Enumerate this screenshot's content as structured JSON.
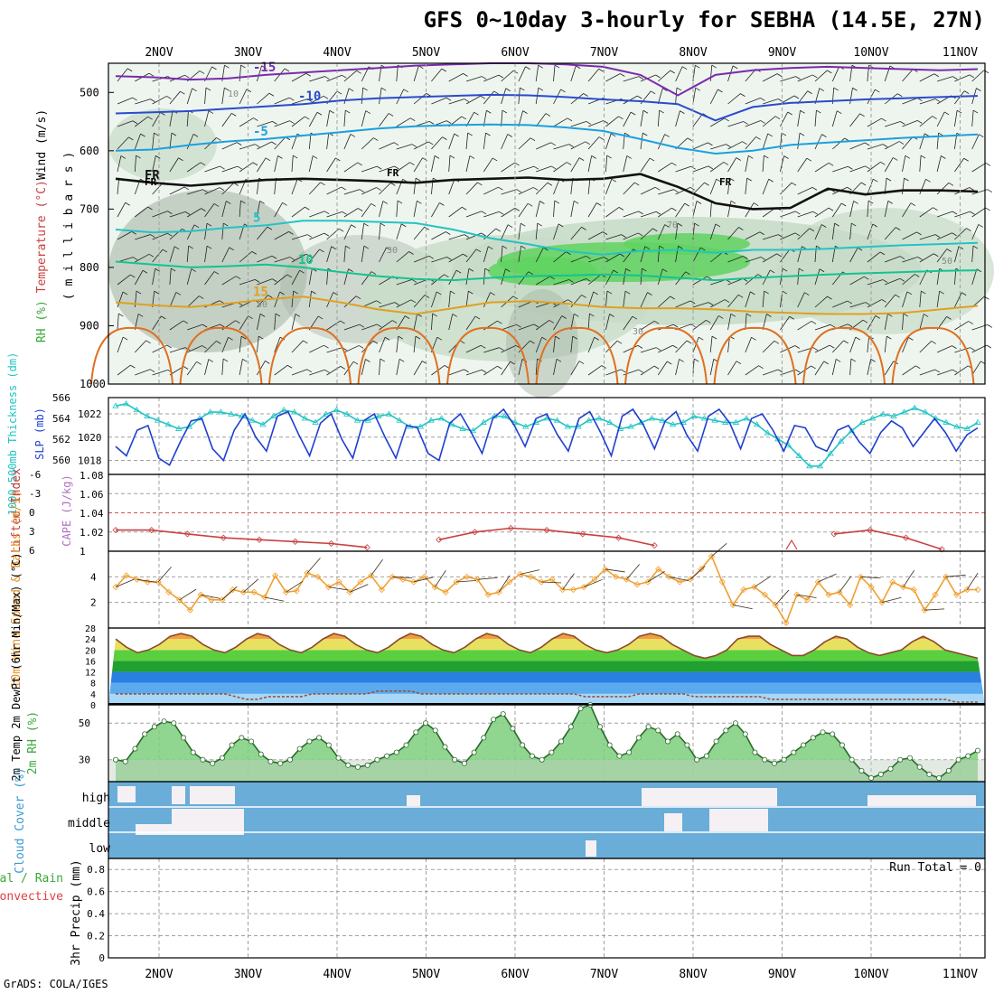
{
  "header": {
    "title": "GFS 0~10day 3-hourly for SEBHA (14.5E, 27N)",
    "footer": "GrADS: COLA/IGES",
    "run_total": "Run Total = 0"
  },
  "colors": {
    "rh_fill": "#c8dcc8",
    "rh_dark": "#a8b8a8",
    "rh_green": "#5fd35f",
    "slp": "#1f3fd0",
    "thickness": "#22c4c4",
    "cape": "#c94040",
    "wind_speed": "#f0a030",
    "barb": "#3a2a1a",
    "cloud": "#6aadd8",
    "cloud_clear": "#f4f0f4",
    "rh2m": "#7ccf7c",
    "grid": "#a0a0a0"
  },
  "chart_data": [
    {
      "panel": "upper_air",
      "type": "contour",
      "ylabel_parts": [
        "Wind (m/s)",
        "Temperature (°C)",
        "RH (%)",
        "( m i l l i b a r s )"
      ],
      "x_tick_labels": [
        "2NOV",
        "3NOV",
        "4NOV",
        "5NOV",
        "6NOV",
        "7NOV",
        "8NOV",
        "9NOV",
        "10NOV",
        "11NOV"
      ],
      "x_range_days": [
        0,
        9.8
      ],
      "y_ticks": [
        500,
        600,
        700,
        800,
        900,
        1000
      ],
      "ylim": [
        1000,
        450
      ],
      "temperature_contours": [
        {
          "label": "-15",
          "color": "#7a2ab0",
          "values": [
            472,
            474,
            478,
            476,
            470,
            466,
            462,
            458,
            454,
            452,
            450,
            450,
            452,
            456,
            470,
            505,
            470,
            462,
            458,
            456,
            458,
            460,
            462,
            460
          ]
        },
        {
          "label": "-10",
          "color": "#2a4ad0",
          "values": [
            536,
            534,
            532,
            528,
            524,
            520,
            514,
            510,
            508,
            506,
            504,
            505,
            508,
            512,
            515,
            520,
            548,
            525,
            518,
            515,
            512,
            510,
            508,
            506
          ]
        },
        {
          "label": "-5",
          "color": "#1aa0e0",
          "values": [
            600,
            598,
            590,
            584,
            580,
            574,
            568,
            562,
            558,
            556,
            555,
            556,
            560,
            566,
            580,
            595,
            605,
            600,
            590,
            586,
            582,
            578,
            575,
            572
          ]
        },
        {
          "label": "FR",
          "color": "#111111",
          "values": [
            648,
            655,
            660,
            655,
            650,
            648,
            650,
            652,
            655,
            650,
            648,
            646,
            650,
            648,
            640,
            662,
            690,
            700,
            698,
            665,
            675,
            668,
            668,
            670
          ]
        },
        {
          "label": "5",
          "color": "#22c4c4",
          "values": [
            735,
            740,
            738,
            732,
            728,
            720,
            720,
            722,
            724,
            735,
            750,
            760,
            772,
            778,
            772,
            770,
            775,
            770,
            770,
            768,
            765,
            762,
            760,
            758
          ]
        },
        {
          "label": "10",
          "color": "#12c490",
          "values": [
            790,
            795,
            800,
            798,
            795,
            800,
            808,
            815,
            820,
            822,
            818,
            815,
            814,
            812,
            814,
            818,
            822,
            818,
            815,
            812,
            810,
            808,
            806,
            805
          ]
        },
        {
          "label": "15",
          "color": "#e0a020",
          "values": [
            860,
            865,
            868,
            862,
            855,
            850,
            860,
            872,
            880,
            870,
            860,
            858,
            862,
            868,
            870,
            870,
            872,
            876,
            878,
            880,
            880,
            878,
            872,
            866
          ]
        }
      ],
      "freezing_labels": [
        "FR",
        "FR",
        "FR"
      ],
      "rh_labels": [
        "10",
        "30",
        "50",
        "70",
        "30",
        "50"
      ]
    },
    {
      "panel": "slp_thickness",
      "type": "line",
      "ylabel_left": "1000-500mb Thickness (dm)",
      "ylabel_right": "SLP (mb)",
      "left_ticks": [
        "560",
        "562",
        "564",
        "566"
      ],
      "right_ticks": [
        "1018",
        "1020",
        "1022"
      ],
      "series": [
        {
          "name": "SLP (mb)",
          "color": "#1f3fd0",
          "values": [
            1019.2,
            1018.4,
            1020.6,
            1021.0,
            1018.2,
            1017.6,
            1019.6,
            1021.4,
            1021.6,
            1019.0,
            1018.0,
            1020.6,
            1022.0,
            1020.0,
            1018.8,
            1021.8,
            1022.2,
            1020.2,
            1018.4,
            1021.2,
            1022.0,
            1019.8,
            1018.2,
            1021.4,
            1022.0,
            1020.0,
            1018.2,
            1021.0,
            1020.8,
            1018.6,
            1018.0,
            1021.2,
            1022.0,
            1020.4,
            1018.6,
            1021.6,
            1022.4,
            1021.0,
            1019.2,
            1021.6,
            1022.0,
            1020.2,
            1018.8,
            1021.6,
            1022.2,
            1020.4,
            1018.4,
            1021.8,
            1022.4,
            1021.0,
            1019.0,
            1021.4,
            1022.2,
            1020.2,
            1018.8,
            1021.8,
            1022.4,
            1021.2,
            1019.0,
            1021.6,
            1022.0,
            1020.6,
            1018.8,
            1021.0,
            1020.8,
            1019.2,
            1018.8,
            1020.6,
            1021.0,
            1019.6,
            1018.6,
            1020.4,
            1021.4,
            1020.8,
            1019.2,
            1020.4,
            1021.6,
            1020.4,
            1018.8,
            1020.2,
            1020.8
          ]
        },
        {
          "name": "1000-500mb Thickness (dm)",
          "color": "#22c4c4",
          "values": [
            565.2,
            565.4,
            564.8,
            564.2,
            563.8,
            563.4,
            563.0,
            563.2,
            564.0,
            564.6,
            564.6,
            564.4,
            564.2,
            563.8,
            563.4,
            564.2,
            564.8,
            564.6,
            564.0,
            563.6,
            564.4,
            564.8,
            564.4,
            563.8,
            563.8,
            564.2,
            564.4,
            563.8,
            563.2,
            563.2,
            563.8,
            564.0,
            563.4,
            563.0,
            562.8,
            563.6,
            564.2,
            564.2,
            563.6,
            563.2,
            563.6,
            564.0,
            563.8,
            563.2,
            563.2,
            563.8,
            564.0,
            563.6,
            563.0,
            563.2,
            563.6,
            564.0,
            563.8,
            563.4,
            563.6,
            564.2,
            564.0,
            563.8,
            563.6,
            563.6,
            564.0,
            563.4,
            562.6,
            562.0,
            561.4,
            560.4,
            559.4,
            559.4,
            560.6,
            561.8,
            562.8,
            563.6,
            564.0,
            564.4,
            564.2,
            564.6,
            565.0,
            564.6,
            564.0,
            563.6,
            563.2,
            563.0,
            563.6
          ]
        }
      ]
    },
    {
      "panel": "li_cape",
      "type": "line",
      "ylabel_left": "Lifted Index",
      "ylabel_right": "CAPE (J/kg)",
      "left_ticks": [
        "-6",
        "-3",
        "0",
        "3",
        "6"
      ],
      "right_ticks": [
        "1",
        "1.02",
        "1.04",
        "1.06",
        "1.08"
      ],
      "series": [
        {
          "name": "CAPE (J/kg)",
          "color": "#c94040",
          "values": [
            1.022,
            1.022,
            1.018,
            1.014,
            1.012,
            1.01,
            1.008,
            1.004,
            null,
            1.012,
            1.02,
            1.024,
            1.022,
            1.018,
            1.014,
            1.006,
            null,
            null,
            null,
            null,
            1.018,
            1.022,
            1.014,
            1.002,
            null
          ]
        }
      ],
      "extra_point_label": "1"
    },
    {
      "panel": "wind10m",
      "type": "line",
      "ylabel": "10m Wind Speed & Barbs (m/s)",
      "y_ticks": [
        "2",
        "4"
      ],
      "series": [
        {
          "name": "10m Wind Speed (m/s)",
          "color": "#f0a030",
          "values": [
            3.2,
            4.1,
            3.8,
            3.6,
            3.6,
            2.8,
            2.2,
            1.4,
            2.6,
            2.2,
            2.2,
            3.0,
            2.8,
            2.8,
            2.4,
            4.1,
            2.8,
            2.9,
            4.3,
            4.0,
            3.2,
            3.6,
            2.8,
            3.6,
            4.1,
            3.0,
            4.0,
            3.8,
            3.6,
            4.0,
            3.2,
            2.8,
            3.6,
            4.0,
            3.8,
            2.6,
            2.8,
            3.6,
            4.2,
            4.0,
            3.6,
            3.8,
            3.0,
            3.0,
            3.2,
            3.8,
            4.6,
            4.0,
            3.8,
            3.4,
            3.6,
            4.6,
            4.0,
            3.6,
            3.8,
            4.6,
            5.6,
            3.6,
            1.8,
            3.0,
            3.2,
            2.6,
            1.8,
            0.4,
            2.6,
            2.2,
            3.6,
            2.6,
            2.8,
            1.8,
            4.0,
            3.2,
            2.0,
            3.6,
            3.2,
            3.0,
            1.4,
            2.6,
            4.0,
            2.6,
            3.0,
            3.0
          ]
        }
      ]
    },
    {
      "panel": "temperature",
      "type": "area",
      "ylabel": "2m Temp 2m DewPt (6hr Min/Max) (°C)",
      "y_ticks": [
        "0",
        "4",
        "8",
        "12",
        "16",
        "20",
        "24",
        "28"
      ],
      "series": [
        {
          "name": "2m Temp",
          "color": "#8b4a2a",
          "values": [
            24,
            21,
            19,
            20,
            22,
            25,
            26,
            25,
            22,
            20,
            19,
            21,
            24,
            26,
            25,
            22,
            20,
            19,
            21,
            24,
            26,
            25,
            22,
            20,
            19,
            21,
            24,
            26,
            25,
            22,
            20,
            19,
            21,
            24,
            26,
            25,
            22,
            20,
            19,
            21,
            24,
            26,
            25,
            22,
            20,
            19,
            20,
            22,
            25,
            26,
            25,
            22,
            20,
            18,
            17,
            18,
            20,
            24,
            25,
            25,
            22,
            20,
            18,
            18,
            20,
            23,
            25,
            24,
            21,
            19,
            18,
            19,
            20,
            23,
            25,
            23,
            20,
            19,
            18,
            17
          ]
        },
        {
          "name": "2m DewPt",
          "color": "#a05030",
          "values": [
            4,
            4,
            4,
            4,
            4,
            4,
            4,
            4,
            4,
            4,
            4,
            3,
            2,
            2,
            3,
            3,
            3,
            3,
            4,
            4,
            4,
            4,
            4,
            4,
            5,
            5,
            5,
            5,
            4,
            4,
            4,
            4,
            4,
            4,
            4,
            4,
            4,
            4,
            4,
            4,
            4,
            4,
            4,
            3,
            3,
            3,
            3,
            3,
            4,
            4,
            4,
            4,
            4,
            3,
            3,
            3,
            3,
            3,
            3,
            3,
            2,
            2,
            2,
            2,
            2,
            2,
            2,
            2,
            2,
            2,
            2,
            2,
            2,
            2,
            2,
            2,
            2,
            1,
            1,
            1
          ]
        }
      ]
    },
    {
      "panel": "rh2m",
      "type": "area",
      "ylabel": "2m RH (%)",
      "y_ticks": [
        "30",
        "50"
      ],
      "series": [
        {
          "name": "2m RH (%)",
          "color": "#7ccf7c",
          "values": [
            30,
            29,
            36,
            44,
            48,
            51,
            50,
            42,
            34,
            30,
            28,
            31,
            38,
            42,
            40,
            33,
            29,
            28,
            30,
            36,
            40,
            42,
            38,
            31,
            27,
            26,
            27,
            30,
            32,
            34,
            38,
            45,
            50,
            46,
            37,
            30,
            28,
            34,
            42,
            52,
            55,
            47,
            38,
            32,
            30,
            34,
            40,
            48,
            58,
            60,
            48,
            38,
            32,
            34,
            42,
            48,
            46,
            40,
            44,
            38,
            30,
            32,
            40,
            46,
            50,
            44,
            34,
            30,
            28,
            30,
            34,
            38,
            42,
            45,
            44,
            38,
            30,
            24,
            20,
            22,
            25,
            30,
            31,
            26,
            22,
            20,
            24,
            30,
            32,
            35
          ]
        }
      ]
    },
    {
      "panel": "cloud_cover",
      "type": "heatmap",
      "ylabel": "Cloud Cover (%)",
      "row_labels": [
        "high",
        "middle",
        "low"
      ]
    },
    {
      "panel": "precip",
      "type": "bar",
      "ylabel_left_parts": [
        "Total / Rain",
        "Convective"
      ],
      "ylabel": "3hr Precip (mm)",
      "y_ticks": [
        "0",
        "0.2",
        "0.4",
        "0.6",
        "0.8"
      ],
      "ylim": [
        0,
        0.9
      ],
      "values": []
    }
  ]
}
